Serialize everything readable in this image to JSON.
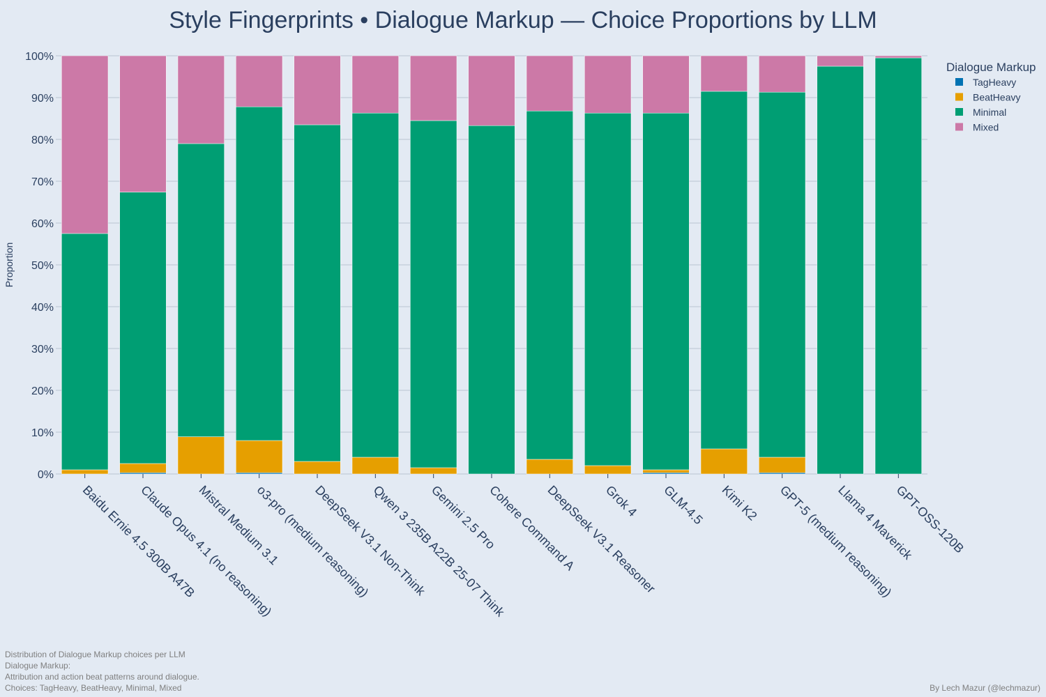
{
  "chart_data": {
    "type": "bar",
    "stacked": true,
    "title": "Style Fingerprints • Dialogue Markup — Choice Proportions by LLM",
    "ylabel": "Proportion",
    "ylim": [
      0,
      1
    ],
    "ytick_labels": [
      "0%",
      "10%",
      "20%",
      "30%",
      "40%",
      "50%",
      "60%",
      "70%",
      "80%",
      "90%",
      "100%"
    ],
    "grid": true,
    "legend_title": "Dialogue Markup",
    "legend_position": "top-right",
    "categories": [
      "Baidu Ernie 4.5 300B A47B",
      "Claude Opus 4.1 (no reasoning)",
      "Mistral Medium 3.1",
      "o3-pro (medium reasoning)",
      "DeepSeek V3.1 Non-Think",
      "Qwen 3 235B A22B 25-07 Think",
      "Gemini 2.5 Pro",
      "Cohere Command A",
      "DeepSeek V3.1 Reasoner",
      "Grok 4",
      "GLM-4.5",
      "Kimi K2",
      "GPT-5 (medium reasoning)",
      "Llama 4 Maverick",
      "GPT-OSS-120B"
    ],
    "series": [
      {
        "name": "TagHeavy",
        "color": "#0072b2",
        "values": [
          0.0,
          0.003,
          0.0,
          0.003,
          0.0,
          0.0,
          0.0,
          0.0,
          0.0,
          0.0,
          0.003,
          0.0,
          0.003,
          0.0,
          0.0
        ]
      },
      {
        "name": "BeatHeavy",
        "color": "#e69f00",
        "values": [
          0.01,
          0.022,
          0.089,
          0.077,
          0.03,
          0.04,
          0.015,
          0.0,
          0.035,
          0.02,
          0.007,
          0.06,
          0.037,
          0.0,
          0.0
        ]
      },
      {
        "name": "Minimal",
        "color": "#009e73",
        "values": [
          0.565,
          0.649,
          0.701,
          0.798,
          0.805,
          0.823,
          0.83,
          0.833,
          0.833,
          0.843,
          0.853,
          0.855,
          0.873,
          0.975,
          0.995
        ]
      },
      {
        "name": "Mixed",
        "color": "#cc79a7",
        "values": [
          0.425,
          0.326,
          0.21,
          0.122,
          0.165,
          0.137,
          0.155,
          0.167,
          0.132,
          0.137,
          0.137,
          0.085,
          0.087,
          0.025,
          0.005
        ]
      }
    ]
  },
  "footer": {
    "lines": [
      "Distribution of Dialogue Markup choices per LLM",
      "Dialogue Markup:",
      "Attribution and action beat patterns around dialogue.",
      "Choices: TagHeavy, BeatHeavy, Minimal, Mixed"
    ],
    "credit": "By Lech Mazur (@lechmazur)"
  }
}
